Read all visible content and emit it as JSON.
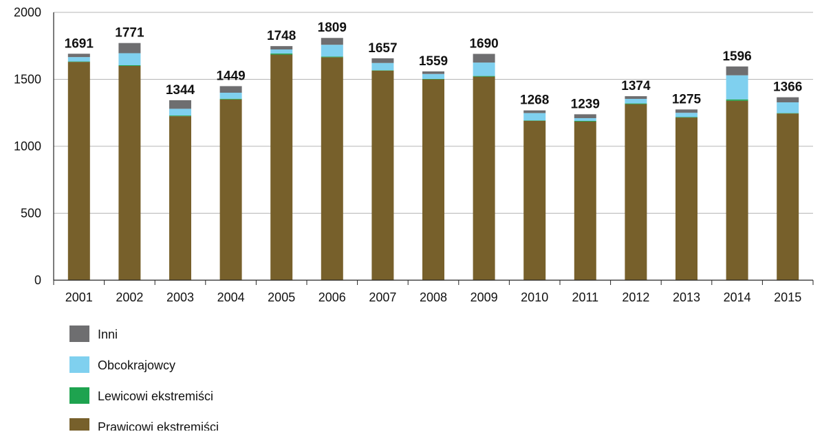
{
  "chart_data": {
    "type": "bar",
    "stacked": true,
    "categories": [
      "2001",
      "2002",
      "2003",
      "2004",
      "2005",
      "2006",
      "2007",
      "2008",
      "2009",
      "2010",
      "2011",
      "2012",
      "2013",
      "2014",
      "2015"
    ],
    "totals": [
      1691,
      1771,
      1344,
      1449,
      1748,
      1809,
      1657,
      1559,
      1690,
      1268,
      1239,
      1374,
      1275,
      1596,
      1366
    ],
    "series": [
      {
        "name": "Prawicowi ekstremiści",
        "color": "#77602b",
        "values": [
          1630,
          1600,
          1225,
          1350,
          1685,
          1665,
          1565,
          1500,
          1520,
          1190,
          1185,
          1315,
          1215,
          1340,
          1245
        ]
      },
      {
        "name": "Lewicowi ekstremiści",
        "color": "#1ea34f",
        "values": [
          3,
          5,
          5,
          5,
          8,
          5,
          3,
          3,
          5,
          3,
          5,
          5,
          3,
          10,
          3
        ]
      },
      {
        "name": "Obcokrajowcy",
        "color": "#7fd0ef",
        "values": [
          33,
          90,
          50,
          45,
          30,
          88,
          54,
          37,
          100,
          55,
          20,
          34,
          32,
          180,
          80
        ]
      },
      {
        "name": "Inni",
        "color": "#6e6e70",
        "values": [
          25,
          76,
          64,
          49,
          25,
          51,
          35,
          19,
          65,
          20,
          29,
          20,
          25,
          66,
          38
        ]
      }
    ],
    "ylim": [
      0,
      2000
    ],
    "yticks": [
      0,
      500,
      1000,
      1500,
      2000
    ],
    "grid": true,
    "legend_position": "bottom-left",
    "legend_order": [
      "Inni",
      "Obcokrajowcy",
      "Lewicowi ekstremiści",
      "Prawicowi ekstremiści"
    ]
  }
}
